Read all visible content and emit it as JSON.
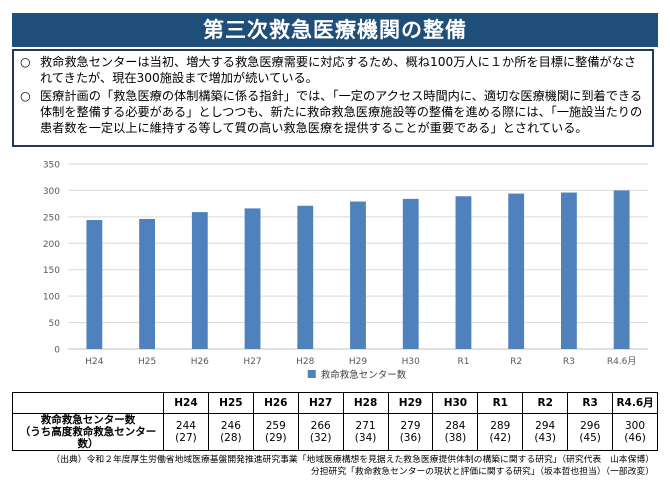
{
  "title": "第三次救急医療機関の整備",
  "bullets": [
    {
      "mark": "○",
      "text": "救命救急センターは当初、増大する救急医療需要に対応するため、概ね100万人に１か所を目標に整備がなされてきたが、現在300施設まで増加が続いている。"
    },
    {
      "mark": "○",
      "text": "医療計画の「救急医療の体制構築に係る指針」では、「一定のアクセス時間内に、適切な医療機関に到着できる体制を整備する必要がある」としつつも、新たに救命救急医療施設等の整備を進める際には、「一施設当たりの患者数を一定以上に維持する等して質の高い救急医療を提供することが重要である」とされている。"
    }
  ],
  "chart_data": {
    "type": "bar",
    "categories": [
      "H24",
      "H25",
      "H26",
      "H27",
      "H28",
      "H29",
      "H30",
      "R1",
      "R2",
      "R3",
      "R4.6月"
    ],
    "series": [
      {
        "name": "救命救急センター数",
        "values": [
          244,
          246,
          259,
          266,
          271,
          279,
          284,
          289,
          294,
          296,
          300
        ],
        "color": "#4f81bd"
      }
    ],
    "ylim": [
      0,
      350
    ],
    "yticks": [
      0,
      50,
      100,
      150,
      200,
      250,
      300,
      350
    ],
    "legend": "bottom"
  },
  "table": {
    "row_label_line1": "救命救急センター数",
    "row_label_line2": "（うち高度救命救急センター数）",
    "high_level": [
      "(27)",
      "(28)",
      "(29)",
      "(32)",
      "(34)",
      "(36)",
      "(38)",
      "(42)",
      "(43)",
      "(45)",
      "(46)"
    ]
  },
  "source": {
    "line1": "（出典）令和２年度厚生労働省地域医療基盤開発推進研究事業「地域医療構想を見据えた救急医療提供体制の構築に関する研究」（研究代表　山本保博）",
    "line2": "分担研究「救命救急センターの現状と評価に関する研究」（坂本哲也担当）（一部改変）"
  }
}
